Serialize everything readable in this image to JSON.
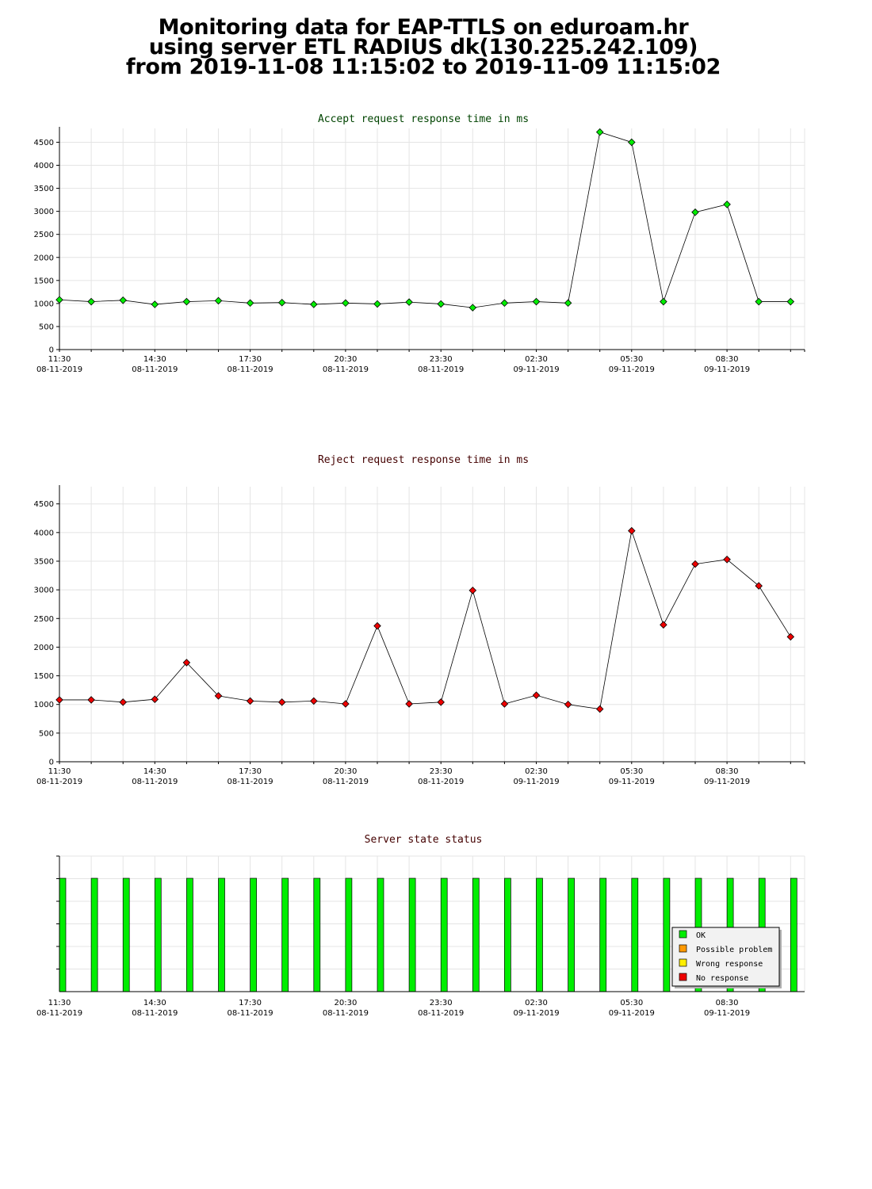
{
  "title": {
    "line1": "Monitoring data for EAP-TTLS on eduroam.hr",
    "line2": "using server ETL RADIUS dk(130.225.242.109)",
    "line3": "from 2019-11-08 11:15:02 to 2019-11-09 11:15:02"
  },
  "colors": {
    "accept": "#00ee00",
    "reject": "#ee0000",
    "ok": "#00ee00",
    "possible_problem": "#ff9900",
    "wrong_response": "#ffee00",
    "no_response": "#ee0000",
    "accept_title": "#004400",
    "reject_title": "#440000"
  },
  "chart_data": [
    {
      "type": "line",
      "title": "Accept request response time in ms",
      "ylim": [
        0,
        4800
      ],
      "yticks": [
        0,
        500,
        1000,
        1500,
        2000,
        2500,
        3000,
        3500,
        4000,
        4500
      ],
      "grid": true,
      "xtick_labels": [
        [
          "11:30",
          "08-11-2019"
        ],
        [
          "14:30",
          "08-11-2019"
        ],
        [
          "17:30",
          "08-11-2019"
        ],
        [
          "20:30",
          "08-11-2019"
        ],
        [
          "23:30",
          "08-11-2019"
        ],
        [
          "02:30",
          "09-11-2019"
        ],
        [
          "05:30",
          "09-11-2019"
        ],
        [
          "08:30",
          "09-11-2019"
        ]
      ],
      "x_hours": [
        0,
        1,
        2,
        3,
        4,
        5,
        6,
        7,
        8,
        9,
        10,
        11,
        12,
        13,
        14,
        15,
        16,
        17,
        18,
        19,
        20,
        21,
        22,
        23
      ],
      "values": [
        1080,
        1040,
        1070,
        980,
        1040,
        1060,
        1010,
        1020,
        980,
        1010,
        990,
        1030,
        990,
        910,
        1010,
        1040,
        1010,
        4720,
        4500,
        1040,
        2980,
        3150,
        1040,
        1040
      ]
    },
    {
      "type": "line",
      "title": "Reject request response time in ms",
      "ylim": [
        0,
        4800
      ],
      "yticks": [
        0,
        500,
        1000,
        1500,
        2000,
        2500,
        3000,
        3500,
        4000,
        4500
      ],
      "grid": true,
      "xtick_labels": [
        [
          "11:30",
          "08-11-2019"
        ],
        [
          "14:30",
          "08-11-2019"
        ],
        [
          "17:30",
          "08-11-2019"
        ],
        [
          "20:30",
          "08-11-2019"
        ],
        [
          "23:30",
          "08-11-2019"
        ],
        [
          "02:30",
          "09-11-2019"
        ],
        [
          "05:30",
          "09-11-2019"
        ],
        [
          "08:30",
          "09-11-2019"
        ]
      ],
      "x_hours": [
        0,
        1,
        2,
        3,
        4,
        5,
        6,
        7,
        8,
        9,
        10,
        11,
        12,
        13,
        14,
        15,
        16,
        17,
        18,
        19,
        20,
        21,
        22,
        23
      ],
      "values": [
        1080,
        1080,
        1040,
        1090,
        1730,
        1150,
        1060,
        1040,
        1060,
        1010,
        2370,
        1010,
        1040,
        2990,
        1010,
        1160,
        1000,
        920,
        4030,
        2390,
        3450,
        3530,
        3070,
        2180
      ]
    },
    {
      "type": "bar",
      "title": "Server state status",
      "grid": true,
      "xtick_labels": [
        [
          "11:30",
          "08-11-2019"
        ],
        [
          "14:30",
          "08-11-2019"
        ],
        [
          "17:30",
          "08-11-2019"
        ],
        [
          "20:30",
          "08-11-2019"
        ],
        [
          "23:30",
          "08-11-2019"
        ],
        [
          "02:30",
          "09-11-2019"
        ],
        [
          "05:30",
          "09-11-2019"
        ],
        [
          "08:30",
          "09-11-2019"
        ]
      ],
      "x_hours": [
        0,
        1,
        2,
        3,
        4,
        5,
        6,
        7,
        8,
        9,
        10,
        11,
        12,
        13,
        14,
        15,
        16,
        17,
        18,
        19,
        20,
        21,
        22,
        23
      ],
      "states": [
        "OK",
        "OK",
        "OK",
        "OK",
        "OK",
        "OK",
        "OK",
        "OK",
        "OK",
        "OK",
        "OK",
        "OK",
        "OK",
        "OK",
        "OK",
        "OK",
        "OK",
        "OK",
        "OK",
        "OK",
        "OK",
        "OK",
        "OK",
        "OK"
      ],
      "legend": [
        "OK",
        "Possible problem",
        "Wrong response",
        "No response"
      ],
      "legend_position": "bottom-right"
    }
  ]
}
